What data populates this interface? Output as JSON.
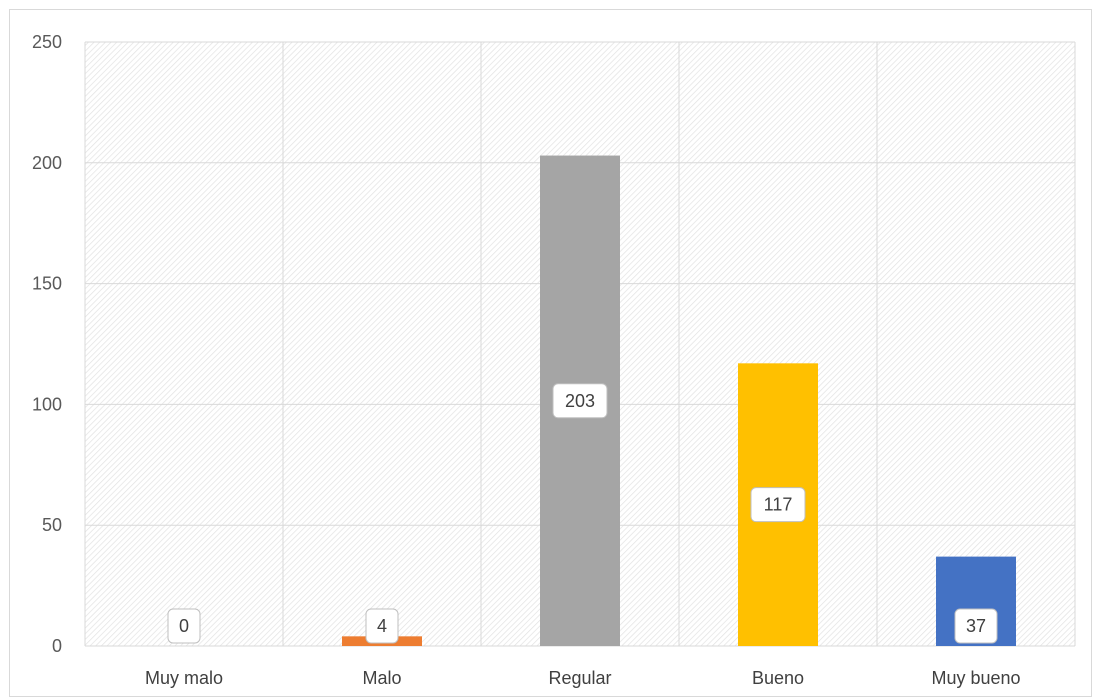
{
  "chart_data": {
    "type": "bar",
    "title": "",
    "xlabel": "",
    "ylabel": "",
    "categories": [
      "Muy malo",
      "Malo",
      "Regular",
      "Bueno",
      "Muy bueno"
    ],
    "values": [
      0,
      4,
      203,
      117,
      37
    ],
    "colors": [
      "#ED7D31",
      "#ED7D31",
      "#A5A5A5",
      "#FFC000",
      "#4472C4"
    ],
    "ylim": [
      0,
      250
    ],
    "yticks": [
      0,
      50,
      100,
      150,
      200,
      250
    ],
    "grid": true,
    "data_labels": [
      "0",
      "4",
      "203",
      "117",
      "37"
    ],
    "legend": "none",
    "background_pattern": "diagonal-hatch"
  }
}
